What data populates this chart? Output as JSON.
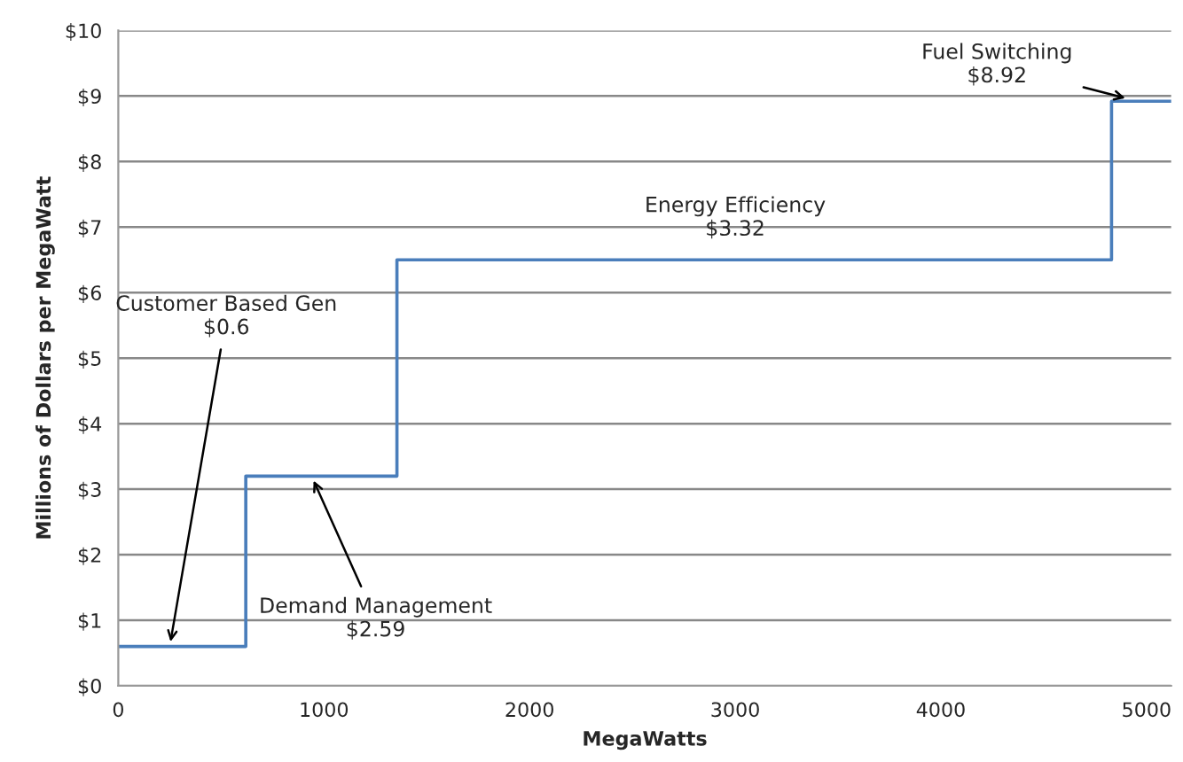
{
  "chart_data": {
    "type": "step",
    "xlabel": "MegaWatts",
    "ylabel": "Millions of Dollars per MegaWatt",
    "series": [
      {
        "color": "#4a7ebb",
        "x": [
          0,
          620,
          1355,
          4830,
          5120
        ],
        "values": [
          0.6,
          3.2,
          6.5,
          8.92,
          8.92
        ]
      }
    ],
    "xlim": [
      0,
      5120
    ],
    "xticks": [
      0,
      1000,
      2000,
      3000,
      4000,
      5000
    ],
    "ylim": [
      0,
      10
    ],
    "yticks": [
      {
        "value": 0,
        "label": "$0"
      },
      {
        "value": 1,
        "label": "$1"
      },
      {
        "value": 2,
        "label": "$2"
      },
      {
        "value": 3,
        "label": "$3"
      },
      {
        "value": 4,
        "label": "$4"
      },
      {
        "value": 5,
        "label": "$5"
      },
      {
        "value": 6,
        "label": "$6"
      },
      {
        "value": 7,
        "label": "$7"
      },
      {
        "value": 8,
        "label": "$8"
      },
      {
        "value": 9,
        "label": "$9"
      },
      {
        "value": 10,
        "label": "$10"
      }
    ],
    "grid": "y",
    "legend": false,
    "annotations": [
      {
        "text": "Customer Based Gen\n$0.6",
        "x": 250,
        "y": 0.6
      },
      {
        "text": "Demand Management\n$2.59",
        "x": 940,
        "y": 3.2
      },
      {
        "text": "Energy Efficiency\n$3.32",
        "x": 3000,
        "y": 6.5
      },
      {
        "text": "Fuel Switching\n$8.92",
        "x": 4920,
        "y": 8.95
      }
    ]
  }
}
